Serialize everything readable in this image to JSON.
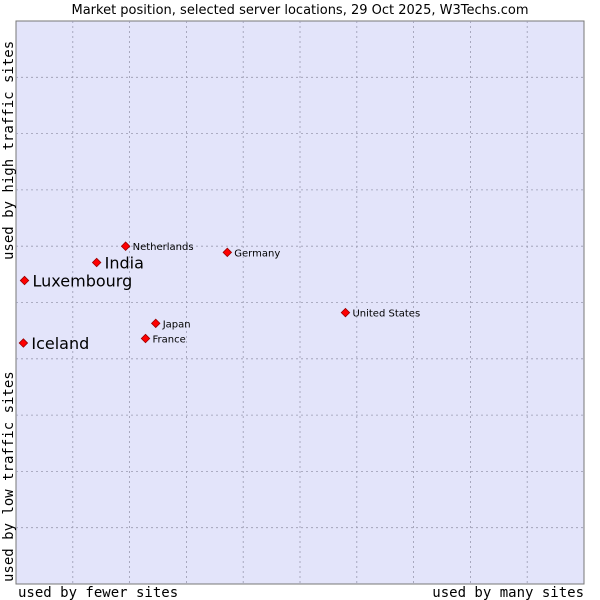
{
  "chart_data": {
    "type": "scatter",
    "title": "Market position, selected server locations, 29 Oct 2025, W3Techs.com",
    "xlabel_low": "used by fewer sites",
    "xlabel_high": "used by many sites",
    "ylabel_low": "used by low traffic sites",
    "ylabel_high": "used by high traffic sites",
    "xlim": [
      0,
      100
    ],
    "ylim": [
      0,
      100
    ],
    "grid": true,
    "points": [
      {
        "name": "Netherlands",
        "x": 19.3,
        "y": 60.0,
        "emphasis": false
      },
      {
        "name": "India",
        "x": 14.2,
        "y": 57.1,
        "emphasis": true
      },
      {
        "name": "Germany",
        "x": 37.2,
        "y": 58.9,
        "emphasis": false
      },
      {
        "name": "Luxembourg",
        "x": 1.5,
        "y": 53.9,
        "emphasis": true
      },
      {
        "name": "United States",
        "x": 58.0,
        "y": 48.2,
        "emphasis": false
      },
      {
        "name": "Japan",
        "x": 24.6,
        "y": 46.3,
        "emphasis": false
      },
      {
        "name": "France",
        "x": 22.8,
        "y": 43.6,
        "emphasis": false
      },
      {
        "name": "Iceland",
        "x": 1.3,
        "y": 42.8,
        "emphasis": true
      }
    ]
  },
  "colors": {
    "plot_bg": "#e3e4fa",
    "grid": "#9a9ab0",
    "marker": "#ff0000",
    "marker_border": "#9a0000"
  }
}
